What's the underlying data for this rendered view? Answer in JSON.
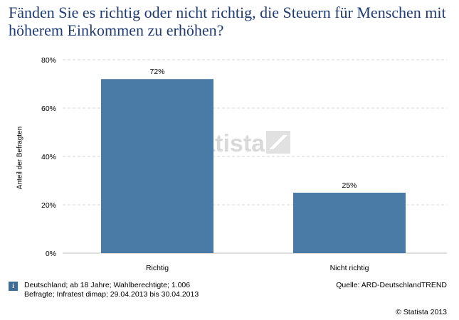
{
  "title": "Fänden Sie es richtig oder nicht richtig, die Steuern für Menschen mit höherem Einkommen zu erhöhen?",
  "colors": {
    "bar": "#4a7aa6",
    "title": "#1f3b73",
    "grid": "#d4d4d4",
    "info": "#3e6e98"
  },
  "chart_data": {
    "type": "bar",
    "categories": [
      "Richtig",
      "Nicht richtig"
    ],
    "values": [
      72,
      25
    ],
    "data_labels": [
      "72%",
      "25%"
    ],
    "ylabel": "Anteil der Befragten",
    "xlabel": "",
    "ylim": [
      0,
      80
    ],
    "yticks": [
      "0%",
      "20%",
      "40%",
      "60%",
      "80%"
    ],
    "grid": true
  },
  "watermark": "statista",
  "footer": {
    "note": "Deutschland; ab 18 Jahre; Wahlberechtigte; 1.006 Befragte; Infratest dimap; 29.04.2013 bis 30.04.2013",
    "source": "Quelle: ARD-DeutschlandTREND",
    "copyright": "© Statista 2013",
    "info_icon": "i"
  }
}
